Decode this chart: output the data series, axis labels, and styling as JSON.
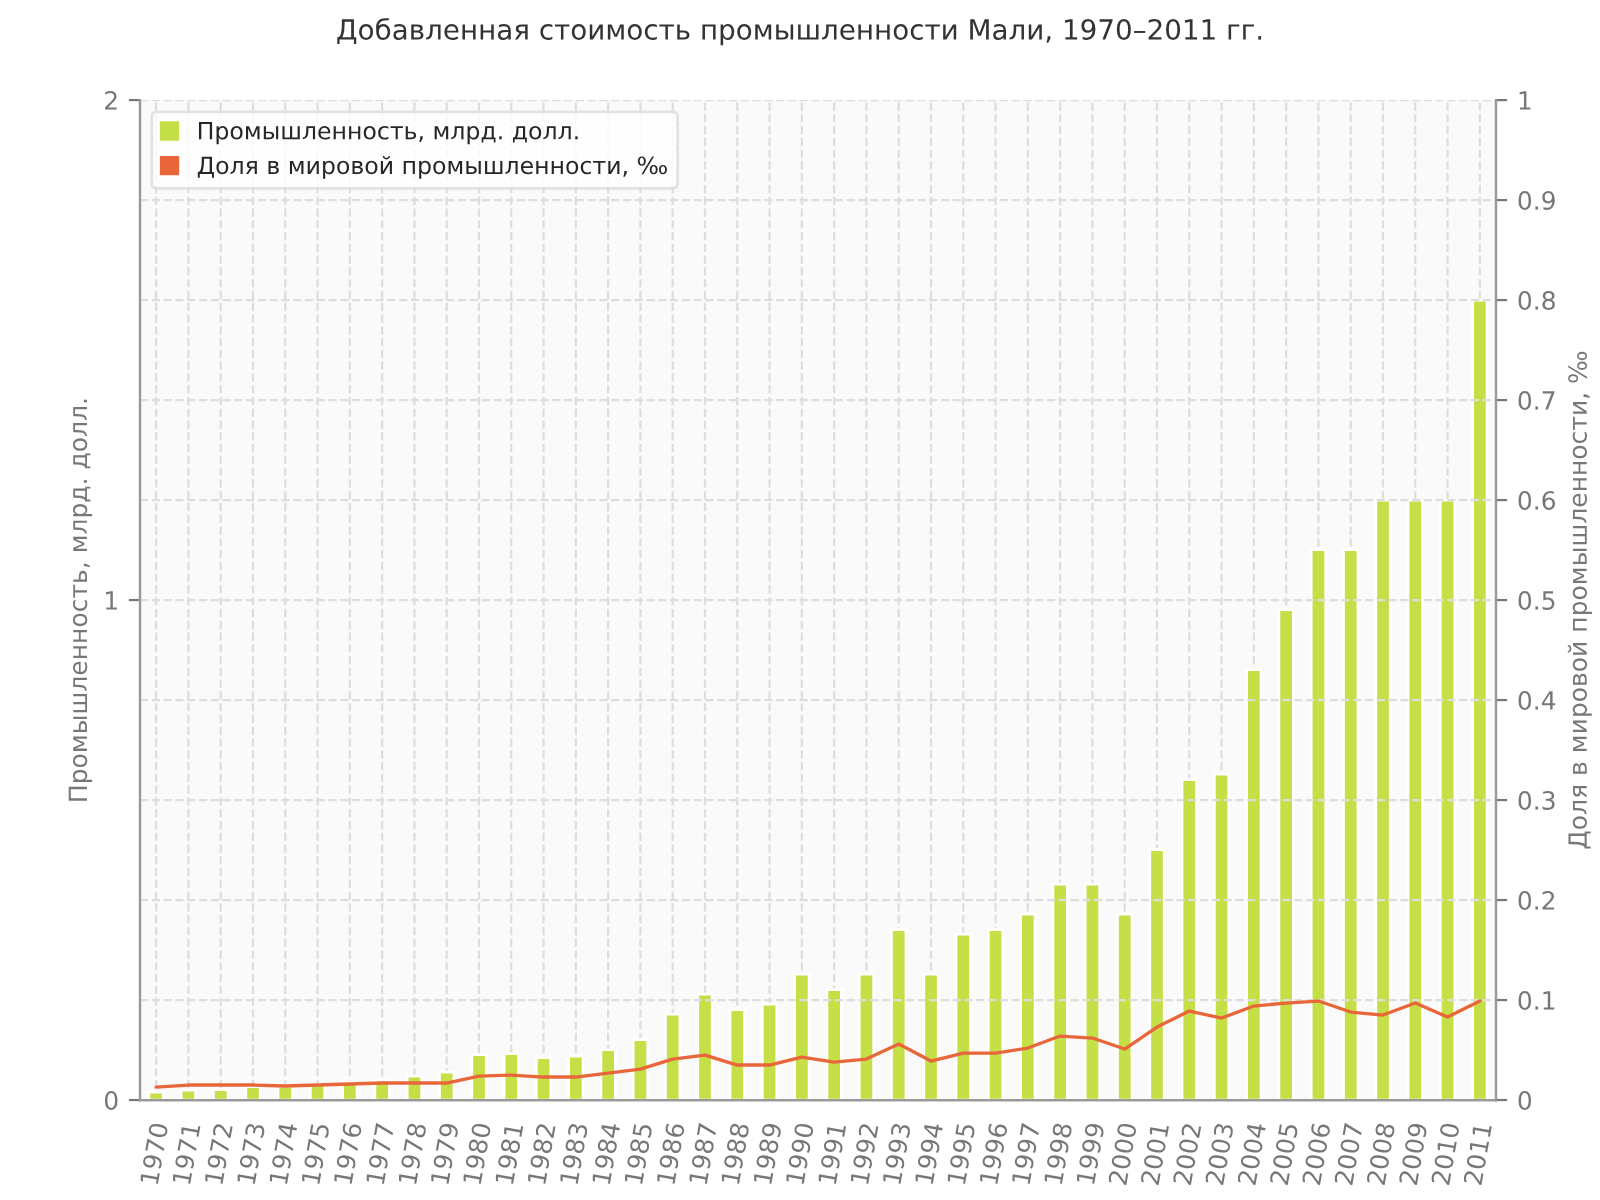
{
  "chart_data": {
    "type": "bar",
    "title": "Добавленная стоимость промышленности Мали, 1970–2011 гг.",
    "ylabel": "Промышленность, млрд. долл.",
    "y2label": "Доля в мировой промышленности, ‰",
    "categories": [
      "1970",
      "1971",
      "1972",
      "1973",
      "1974",
      "1975",
      "1976",
      "1977",
      "1978",
      "1979",
      "1980",
      "1981",
      "1982",
      "1983",
      "1984",
      "1985",
      "1986",
      "1987",
      "1988",
      "1989",
      "1990",
      "1991",
      "1992",
      "1993",
      "1994",
      "1995",
      "1996",
      "1997",
      "1998",
      "1999",
      "2000",
      "2001",
      "2002",
      "2003",
      "2004",
      "2005",
      "2006",
      "2007",
      "2008",
      "2009",
      "2010",
      "2011"
    ],
    "series": [
      {
        "name": "Промышленность, млрд. долл.",
        "color": "#c5df47",
        "values": [
          0.016,
          0.02,
          0.021,
          0.027,
          0.028,
          0.031,
          0.036,
          0.04,
          0.048,
          0.056,
          0.091,
          0.093,
          0.085,
          0.088,
          0.101,
          0.121,
          0.172,
          0.212,
          0.181,
          0.192,
          0.252,
          0.221,
          0.252,
          0.341,
          0.252,
          0.332,
          0.341,
          0.372,
          0.432,
          0.432,
          0.372,
          0.501,
          0.641,
          0.652,
          0.861,
          0.981,
          1.101,
          1.101,
          1.2,
          1.2,
          1.2,
          1.6
        ]
      },
      {
        "name": "Доля в мировой промышленности, ‰",
        "type": "line",
        "axis": "y2",
        "color": "#e8663a",
        "values": [
          0.013,
          0.015,
          0.015,
          0.015,
          0.014,
          0.015,
          0.016,
          0.017,
          0.017,
          0.017,
          0.024,
          0.025,
          0.023,
          0.023,
          0.027,
          0.031,
          0.041,
          0.045,
          0.035,
          0.035,
          0.043,
          0.038,
          0.041,
          0.056,
          0.039,
          0.047,
          0.047,
          0.052,
          0.064,
          0.062,
          0.051,
          0.073,
          0.089,
          0.082,
          0.094,
          0.097,
          0.099,
          0.088,
          0.085,
          0.097,
          0.083,
          0.099
        ]
      }
    ],
    "ylim": [
      0,
      2
    ],
    "yticks": [
      0,
      1,
      2
    ],
    "y2lim": [
      0,
      1
    ],
    "y2ticks": [
      0,
      0.1,
      0.2,
      0.3,
      0.4,
      0.5,
      0.6,
      0.7,
      0.8,
      0.9,
      1
    ],
    "grid": true,
    "legend": "top left",
    "marker": "none",
    "line_style": "solid"
  }
}
